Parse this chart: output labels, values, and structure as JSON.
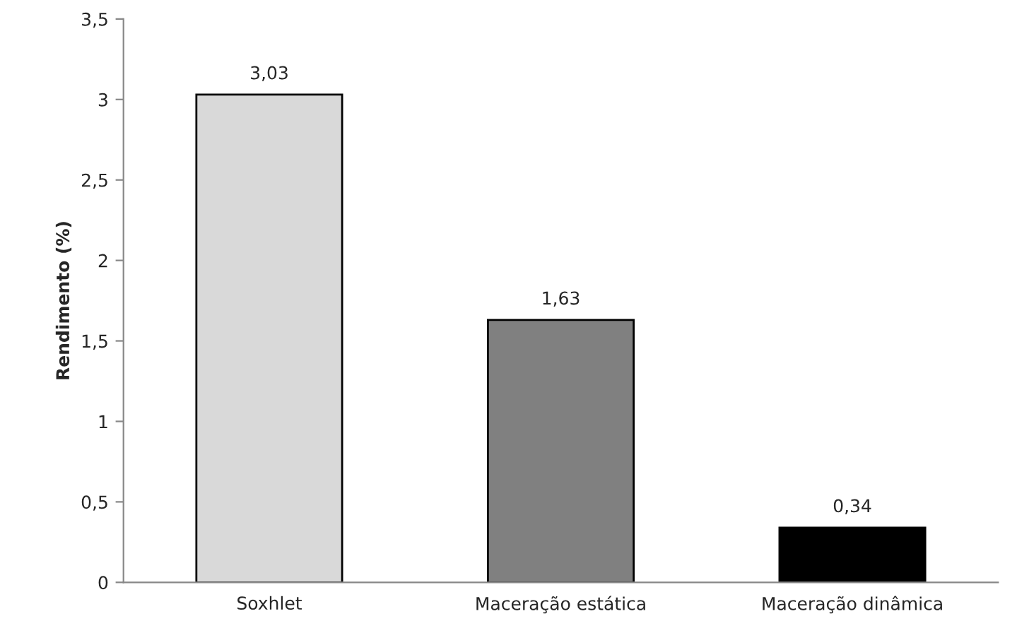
{
  "chart_data": {
    "type": "bar",
    "ylabel": "Rendimento (%)",
    "categories": [
      "Soxhlet",
      "Maceração estática",
      "Maceração dinâmica"
    ],
    "values": [
      3.03,
      1.63,
      0.34
    ],
    "colors": [
      "#d9d9d9",
      "#808080",
      "#000000"
    ],
    "value_labels": [
      "3,03",
      "1,63",
      "0,34"
    ],
    "ylim": [
      0,
      3.5
    ],
    "yticks": [
      0,
      {
        "value": 0.5,
        "label": "0,5"
      },
      1,
      {
        "value": 1.5,
        "label": "1,5"
      },
      2,
      {
        "value": 2.5,
        "label": "2,5"
      },
      3,
      {
        "value": 3.5,
        "label": "3,5"
      }
    ],
    "grid": false
  }
}
